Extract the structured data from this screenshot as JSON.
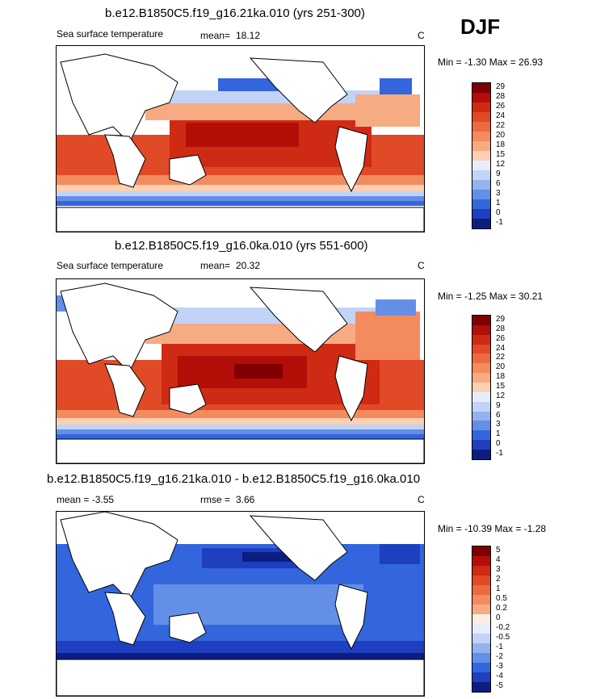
{
  "season": "DJF",
  "panels": [
    {
      "title": "b.e12.B1850C5.f19_g16.21ka.010 (yrs 251-300)",
      "left_label": "Sea surface temperature",
      "stat_label": "mean=",
      "stat_value": "18.12",
      "unit": "C",
      "range_text": "Min =  -1.30 Max =  26.93",
      "colorbar_ticks": [
        "29",
        "28",
        "26",
        "24",
        "22",
        "20",
        "18",
        "15",
        "12",
        "9",
        "6",
        "3",
        "1",
        "0",
        "-1"
      ]
    },
    {
      "title": "b.e12.B1850C5.f19_g16.0ka.010 (yrs 551-600)",
      "left_label": "Sea surface temperature",
      "stat_label": "mean=",
      "stat_value": "20.32",
      "unit": "C",
      "range_text": "Min =  -1.25 Max =  30.21",
      "colorbar_ticks": [
        "29",
        "28",
        "26",
        "24",
        "22",
        "20",
        "18",
        "15",
        "12",
        "9",
        "6",
        "3",
        "1",
        "0",
        "-1"
      ]
    },
    {
      "title": "b.e12.B1850C5.f19_g16.21ka.010 - b.e12.B1850C5.f19_g16.0ka.010",
      "left_label": "mean =  -3.55",
      "stat_label": "rmse =",
      "stat_value": "3.66",
      "unit": "C",
      "range_text": "Min =  -10.39 Max =  -1.28",
      "colorbar_ticks": [
        "5",
        "4",
        "3",
        "2",
        "1",
        "0.5",
        "0.2",
        "0",
        "-0.2",
        "-0.5",
        "-1",
        "-2",
        "-3",
        "-4",
        "-5"
      ]
    }
  ],
  "colors": {
    "temp_scale": [
      "#7f0000",
      "#b30e07",
      "#cf2a13",
      "#e04a26",
      "#ec6a3e",
      "#f38b5e",
      "#f7ab83",
      "#fbd0b3",
      "#e6eefb",
      "#c2d3f6",
      "#94b2ef",
      "#6390e6",
      "#3366dd",
      "#1e3fbf",
      "#0b1e80"
    ],
    "diff_scale": [
      "#7f0000",
      "#b30e07",
      "#cf2a13",
      "#e04a26",
      "#ec6a3e",
      "#f38b5e",
      "#f7ab83",
      "#fdeee3",
      "#e6eefb",
      "#c2d3f6",
      "#94b2ef",
      "#6390e6",
      "#3366dd",
      "#1e3fbf",
      "#0b1e80"
    ]
  }
}
